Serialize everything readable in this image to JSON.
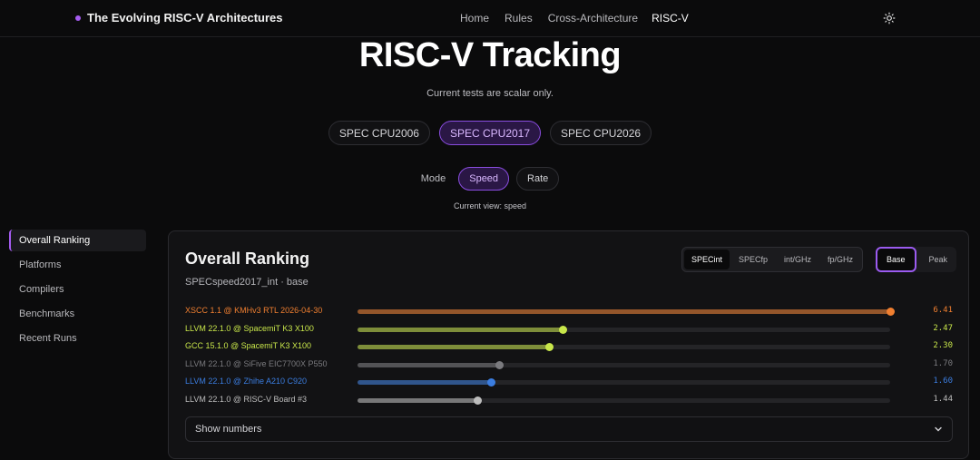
{
  "brand": {
    "title": "The Evolving RISC-V Architectures",
    "accent": "#a55cf0"
  },
  "nav": {
    "items": [
      {
        "label": "Home",
        "active": false
      },
      {
        "label": "Rules",
        "active": false
      },
      {
        "label": "Cross-Architecture",
        "active": false
      },
      {
        "label": "RISC-V",
        "active": true
      }
    ],
    "theme_icon": "sun-icon"
  },
  "hero": {
    "title": "RISC-V Tracking",
    "subtitle": "Current tests are scalar only."
  },
  "suites": [
    {
      "label": "SPEC CPU2006",
      "active": false
    },
    {
      "label": "SPEC CPU2017",
      "active": true
    },
    {
      "label": "SPEC CPU2026",
      "active": false
    }
  ],
  "mode": {
    "label": "Mode",
    "options": [
      {
        "label": "Speed",
        "active": true
      },
      {
        "label": "Rate",
        "active": false
      }
    ],
    "current_view": "Current view: speed"
  },
  "sidebar": {
    "items": [
      {
        "label": "Overall Ranking",
        "active": true
      },
      {
        "label": "Platforms",
        "active": false
      },
      {
        "label": "Compilers",
        "active": false
      },
      {
        "label": "Benchmarks",
        "active": false
      },
      {
        "label": "Recent Runs",
        "active": false
      }
    ]
  },
  "panel": {
    "title": "Overall Ranking",
    "subtitle": "SPECspeed2017_int · base",
    "metric_tabs": [
      {
        "label": "SPECint",
        "active": true
      },
      {
        "label": "SPECfp",
        "active": false
      },
      {
        "label": "int/GHz",
        "active": false
      },
      {
        "label": "fp/GHz",
        "active": false
      }
    ],
    "tuning_tabs": [
      {
        "label": "Base",
        "active": true
      },
      {
        "label": "Peak",
        "active": false
      }
    ],
    "max_value": 6.41,
    "rows": [
      {
        "label": "XSCC 1.1 @ KMHv3 RTL 2026-04-30",
        "value": "6.41",
        "score": 6.41,
        "color": "#f07f30"
      },
      {
        "label": "LLVM 22.1.0 @ SpacemiT K3 X100",
        "value": "2.47",
        "score": 2.47,
        "color": "#c8e64a"
      },
      {
        "label": "GCC 15.1.0 @ SpacemiT K3 X100",
        "value": "2.30",
        "score": 2.3,
        "color": "#c8e64a"
      },
      {
        "label": "LLVM 22.1.0 @ SiFive EIC7700X P550",
        "value": "1.70",
        "score": 1.7,
        "color": "#7a7a7e"
      },
      {
        "label": "LLVM 22.1.0 @ Zhihe A210 C920",
        "value": "1.60",
        "score": 1.6,
        "color": "#3b7de0"
      },
      {
        "label": "LLVM 22.1.0 @ RISC-V Board #3",
        "value": "1.44",
        "score": 1.44,
        "color": "#bdbdbd"
      }
    ],
    "show_numbers": "Show numbers"
  }
}
